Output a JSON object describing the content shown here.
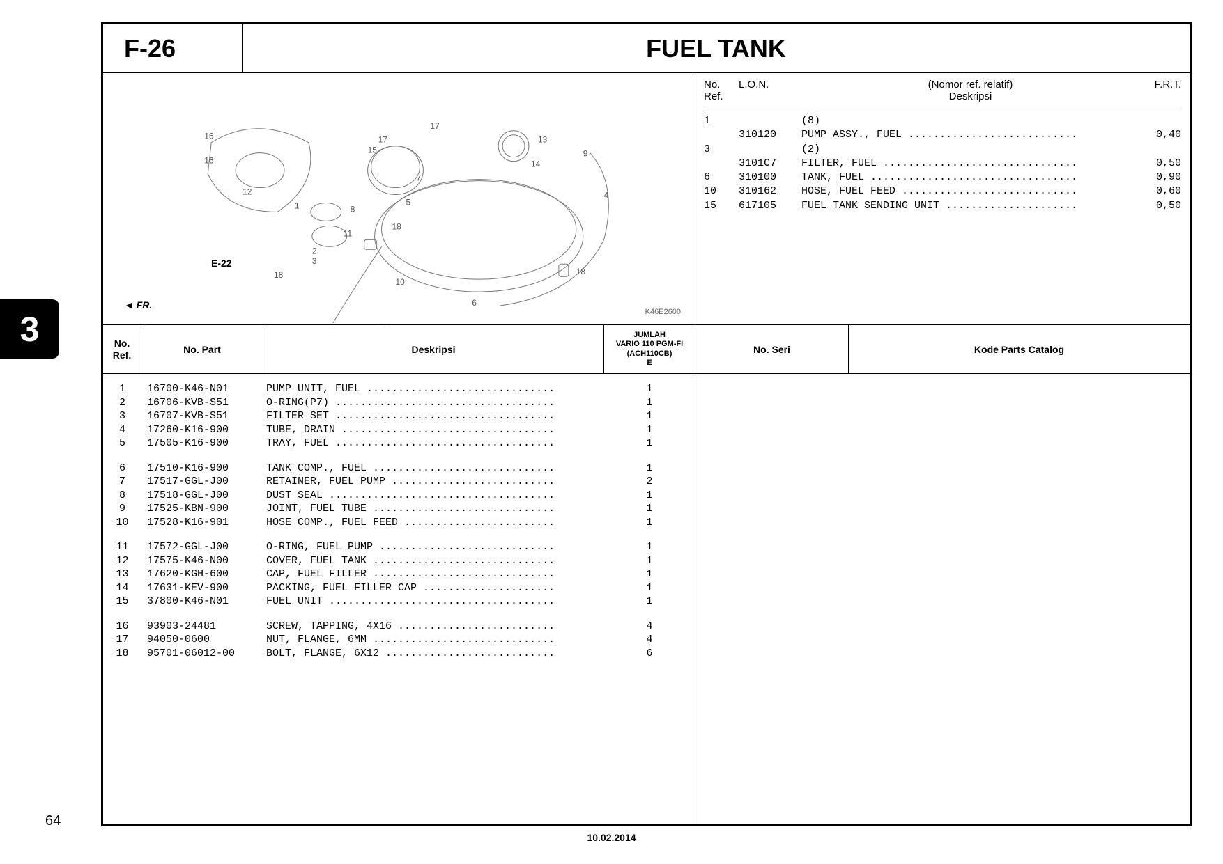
{
  "tab_number": "3",
  "section_code": "F-26",
  "section_title": "FUEL TANK",
  "diagram_code": "K46E2600",
  "fr_label": "FR.",
  "e22_label": "E-22",
  "lon_header": {
    "ref": "No. Ref.",
    "lon": "L.O.N.",
    "desc_top": "(Nomor ref. relatif)",
    "desc_bottom": "Deskripsi",
    "frt": "F.R.T."
  },
  "lon_rows": [
    {
      "ref": "1",
      "lon": "",
      "desc": "(8)",
      "frt": ""
    },
    {
      "ref": "",
      "lon": "310120",
      "desc": "PUMP ASSY., FUEL ...........................",
      "frt": "0,40"
    },
    {
      "ref": "3",
      "lon": "",
      "desc": "(2)",
      "frt": ""
    },
    {
      "ref": "",
      "lon": "3101C7",
      "desc": "FILTER, FUEL ...............................",
      "frt": "0,50"
    },
    {
      "ref": "6",
      "lon": "310100",
      "desc": "TANK, FUEL .................................",
      "frt": "0,90"
    },
    {
      "ref": "10",
      "lon": "310162",
      "desc": "HOSE, FUEL FEED ............................",
      "frt": "0,60"
    },
    {
      "ref": "15",
      "lon": "617105",
      "desc": "FUEL TANK SENDING UNIT .....................",
      "frt": "0,50"
    }
  ],
  "parts_header": {
    "ref_l1": "No.",
    "ref_l2": "Ref.",
    "part": "No. Part",
    "desc": "Deskripsi",
    "jumlah_l1": "JUMLAH",
    "jumlah_l2": "VARIO 110 PGM-FI",
    "jumlah_l3": "(ACH110CB)",
    "jumlah_l4": "E"
  },
  "parts_groups": [
    [
      {
        "ref": "1",
        "part": "16700-K46-N01",
        "desc": "PUMP UNIT, FUEL ..............................",
        "qty": "1"
      },
      {
        "ref": "2",
        "part": "16706-KVB-S51",
        "desc": "O-RING(P7) ...................................",
        "qty": "1"
      },
      {
        "ref": "3",
        "part": "16707-KVB-S51",
        "desc": "FILTER SET ...................................",
        "qty": "1"
      },
      {
        "ref": "4",
        "part": "17260-K16-900",
        "desc": "TUBE, DRAIN ..................................",
        "qty": "1"
      },
      {
        "ref": "5",
        "part": "17505-K16-900",
        "desc": "TRAY, FUEL ...................................",
        "qty": "1"
      }
    ],
    [
      {
        "ref": "6",
        "part": "17510-K16-900",
        "desc": "TANK COMP., FUEL .............................",
        "qty": "1"
      },
      {
        "ref": "7",
        "part": "17517-GGL-J00",
        "desc": "RETAINER, FUEL PUMP ..........................",
        "qty": "2"
      },
      {
        "ref": "8",
        "part": "17518-GGL-J00",
        "desc": "DUST SEAL ....................................",
        "qty": "1"
      },
      {
        "ref": "9",
        "part": "17525-KBN-900",
        "desc": "JOINT, FUEL TUBE .............................",
        "qty": "1"
      },
      {
        "ref": "10",
        "part": "17528-K16-901",
        "desc": "HOSE COMP., FUEL FEED ........................",
        "qty": "1"
      }
    ],
    [
      {
        "ref": "11",
        "part": "17572-GGL-J00",
        "desc": "O-RING, FUEL PUMP ............................",
        "qty": "1"
      },
      {
        "ref": "12",
        "part": "17575-K46-N00",
        "desc": "COVER, FUEL TANK .............................",
        "qty": "1"
      },
      {
        "ref": "13",
        "part": "17620-KGH-600",
        "desc": "CAP, FUEL FILLER .............................",
        "qty": "1"
      },
      {
        "ref": "14",
        "part": "17631-KEV-900",
        "desc": "PACKING, FUEL FILLER CAP .....................",
        "qty": "1"
      },
      {
        "ref": "15",
        "part": "37800-K46-N01",
        "desc": "FUEL UNIT ....................................",
        "qty": "1"
      }
    ],
    [
      {
        "ref": "16",
        "part": "93903-24481",
        "desc": "SCREW, TAPPING, 4X16 .........................",
        "qty": "4"
      },
      {
        "ref": "17",
        "part": "94050-0600",
        "desc": "NUT, FLANGE, 6MM .............................",
        "qty": "4"
      },
      {
        "ref": "18",
        "part": "95701-06012-00",
        "desc": "BOLT, FLANGE, 6X12 ...........................",
        "qty": "6"
      }
    ]
  ],
  "serial_header": {
    "seri": "No. Seri",
    "kode": "Kode Parts Catalog"
  },
  "page_number": "64",
  "date": "10.02.2014"
}
